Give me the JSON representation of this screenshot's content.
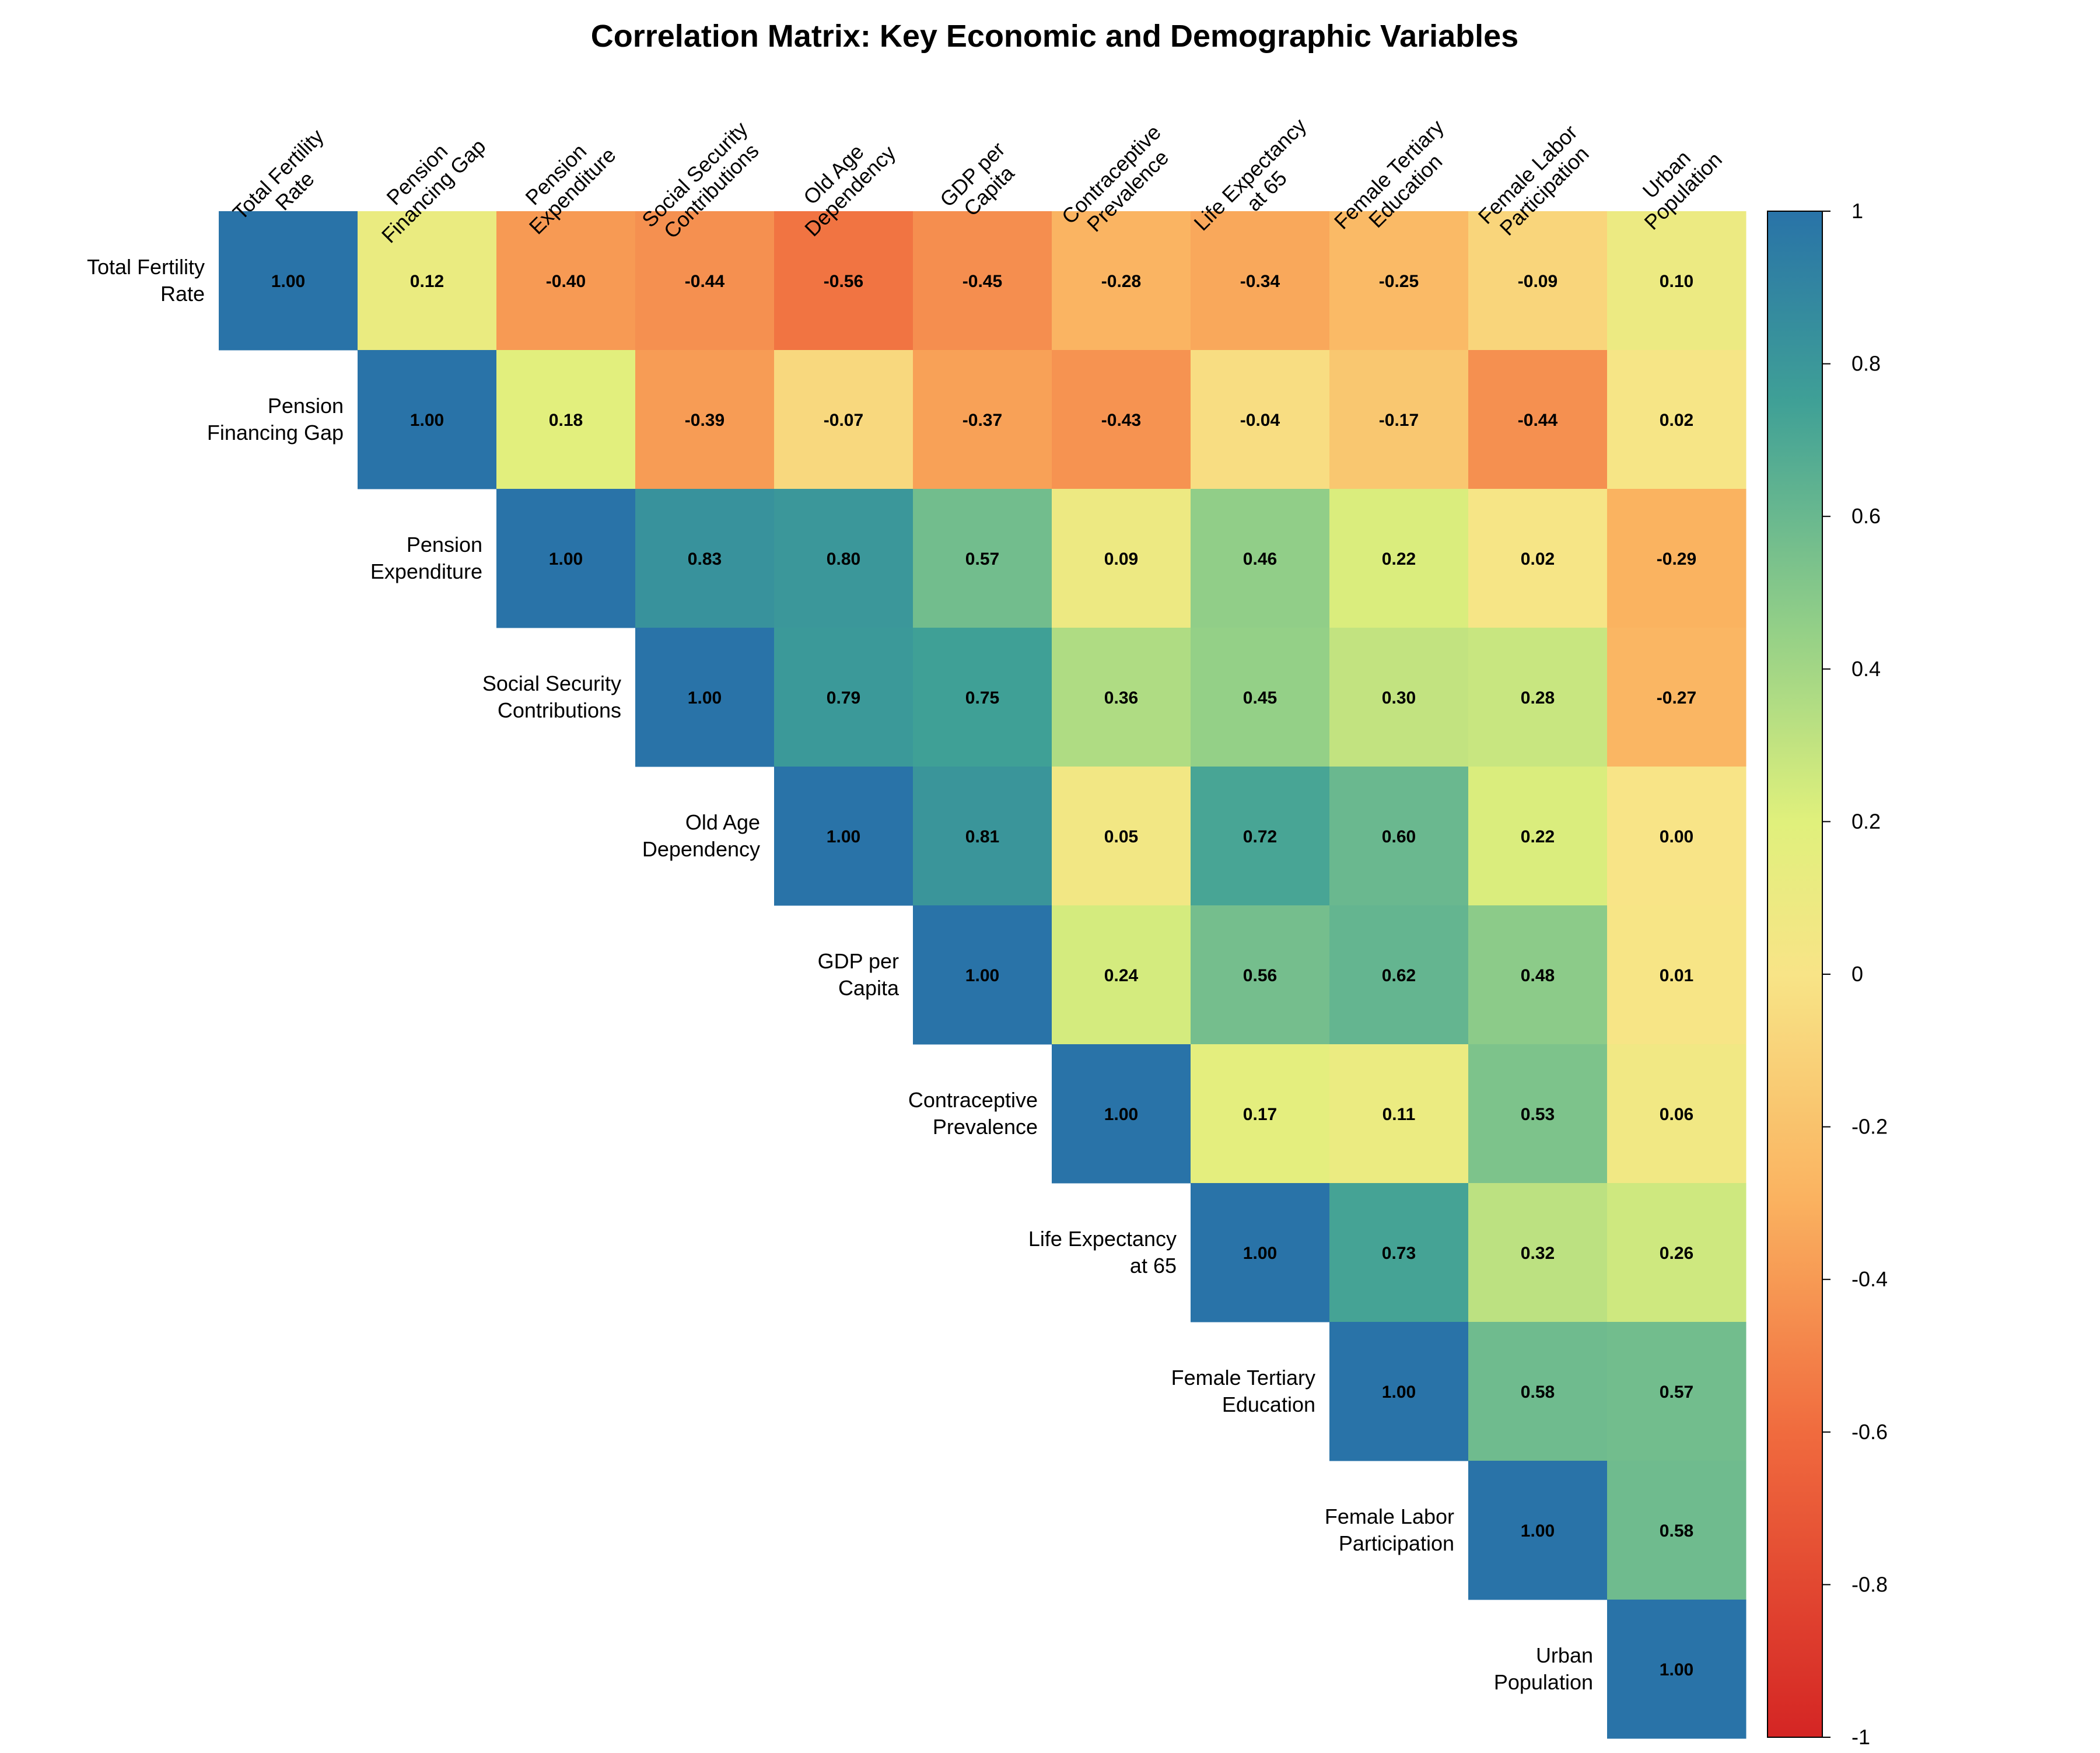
{
  "chart_data": {
    "type": "heatmap",
    "title": "Correlation Matrix: Key Economic and Demographic Variables",
    "triangle": "upper",
    "variables": [
      "Total Fertility\nRate",
      "Pension\nFinancing Gap",
      "Pension\nExpenditure",
      "Social Security\nContributions",
      "Old Age\nDependency",
      "GDP per\nCapita",
      "Contraceptive\nPrevalence",
      "Life Expectancy\nat 65",
      "Female Tertiary\nEducation",
      "Female Labor\nParticipation",
      "Urban\nPopulation"
    ],
    "matrix": [
      [
        1.0,
        0.12,
        -0.4,
        -0.44,
        -0.56,
        -0.45,
        -0.28,
        -0.34,
        -0.25,
        -0.09,
        0.1
      ],
      [
        null,
        1.0,
        0.18,
        -0.39,
        -0.07,
        -0.37,
        -0.43,
        -0.04,
        -0.17,
        -0.44,
        0.02
      ],
      [
        null,
        null,
        1.0,
        0.83,
        0.8,
        0.57,
        0.09,
        0.46,
        0.22,
        0.02,
        -0.29
      ],
      [
        null,
        null,
        null,
        1.0,
        0.79,
        0.75,
        0.36,
        0.45,
        0.3,
        0.28,
        -0.27
      ],
      [
        null,
        null,
        null,
        null,
        1.0,
        0.81,
        0.05,
        0.72,
        0.6,
        0.22,
        0.0
      ],
      [
        null,
        null,
        null,
        null,
        null,
        1.0,
        0.24,
        0.56,
        0.62,
        0.48,
        0.01
      ],
      [
        null,
        null,
        null,
        null,
        null,
        null,
        1.0,
        0.17,
        0.11,
        0.53,
        0.06
      ],
      [
        null,
        null,
        null,
        null,
        null,
        null,
        null,
        1.0,
        0.73,
        0.32,
        0.26
      ],
      [
        null,
        null,
        null,
        null,
        null,
        null,
        null,
        null,
        1.0,
        0.58,
        0.57
      ],
      [
        null,
        null,
        null,
        null,
        null,
        null,
        null,
        null,
        null,
        1.0,
        0.58
      ],
      [
        null,
        null,
        null,
        null,
        null,
        null,
        null,
        null,
        null,
        null,
        1.0
      ]
    ],
    "value_format": "2 decimals",
    "colorbar": {
      "range": [
        -1,
        1
      ],
      "ticks": [
        "-1",
        "-0.8",
        "-0.6",
        "-0.4",
        "-0.2",
        "0",
        "0.2",
        "0.4",
        "0.6",
        "0.8",
        "1"
      ],
      "colormap": "red-yellow-green-blue (diverging)"
    }
  }
}
